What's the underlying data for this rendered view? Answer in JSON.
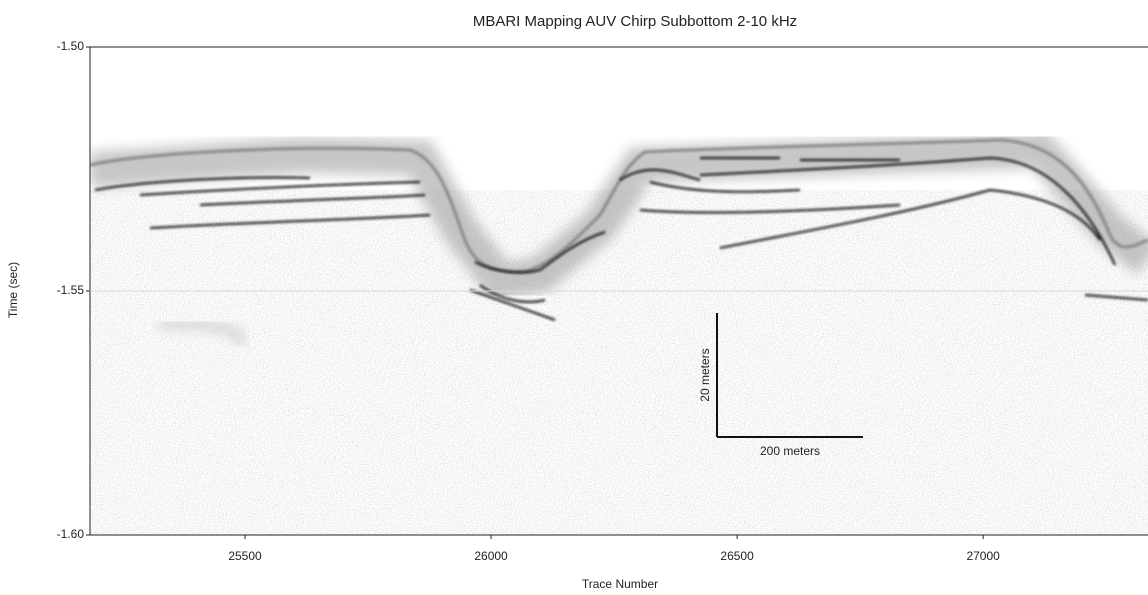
{
  "chart_data": {
    "type": "profile",
    "title": "MBARI Mapping AUV Chirp Subbottom 2-10 kHz",
    "x_label": "Trace Number",
    "y_label": "Time (sec)",
    "xlim": [
      25185,
      27335
    ],
    "xticks": [
      25500,
      26000,
      26500,
      27000
    ],
    "ylim": [
      -1.6,
      -1.5
    ],
    "yticks": [
      {
        "value": -1.5,
        "label": "-1.50"
      },
      {
        "value": -1.55,
        "label": "-1.55"
      },
      {
        "value": -1.6,
        "label": "-1.60"
      }
    ],
    "grid": true,
    "annotations": [
      "20 meters",
      "200 meters"
    ]
  }
}
